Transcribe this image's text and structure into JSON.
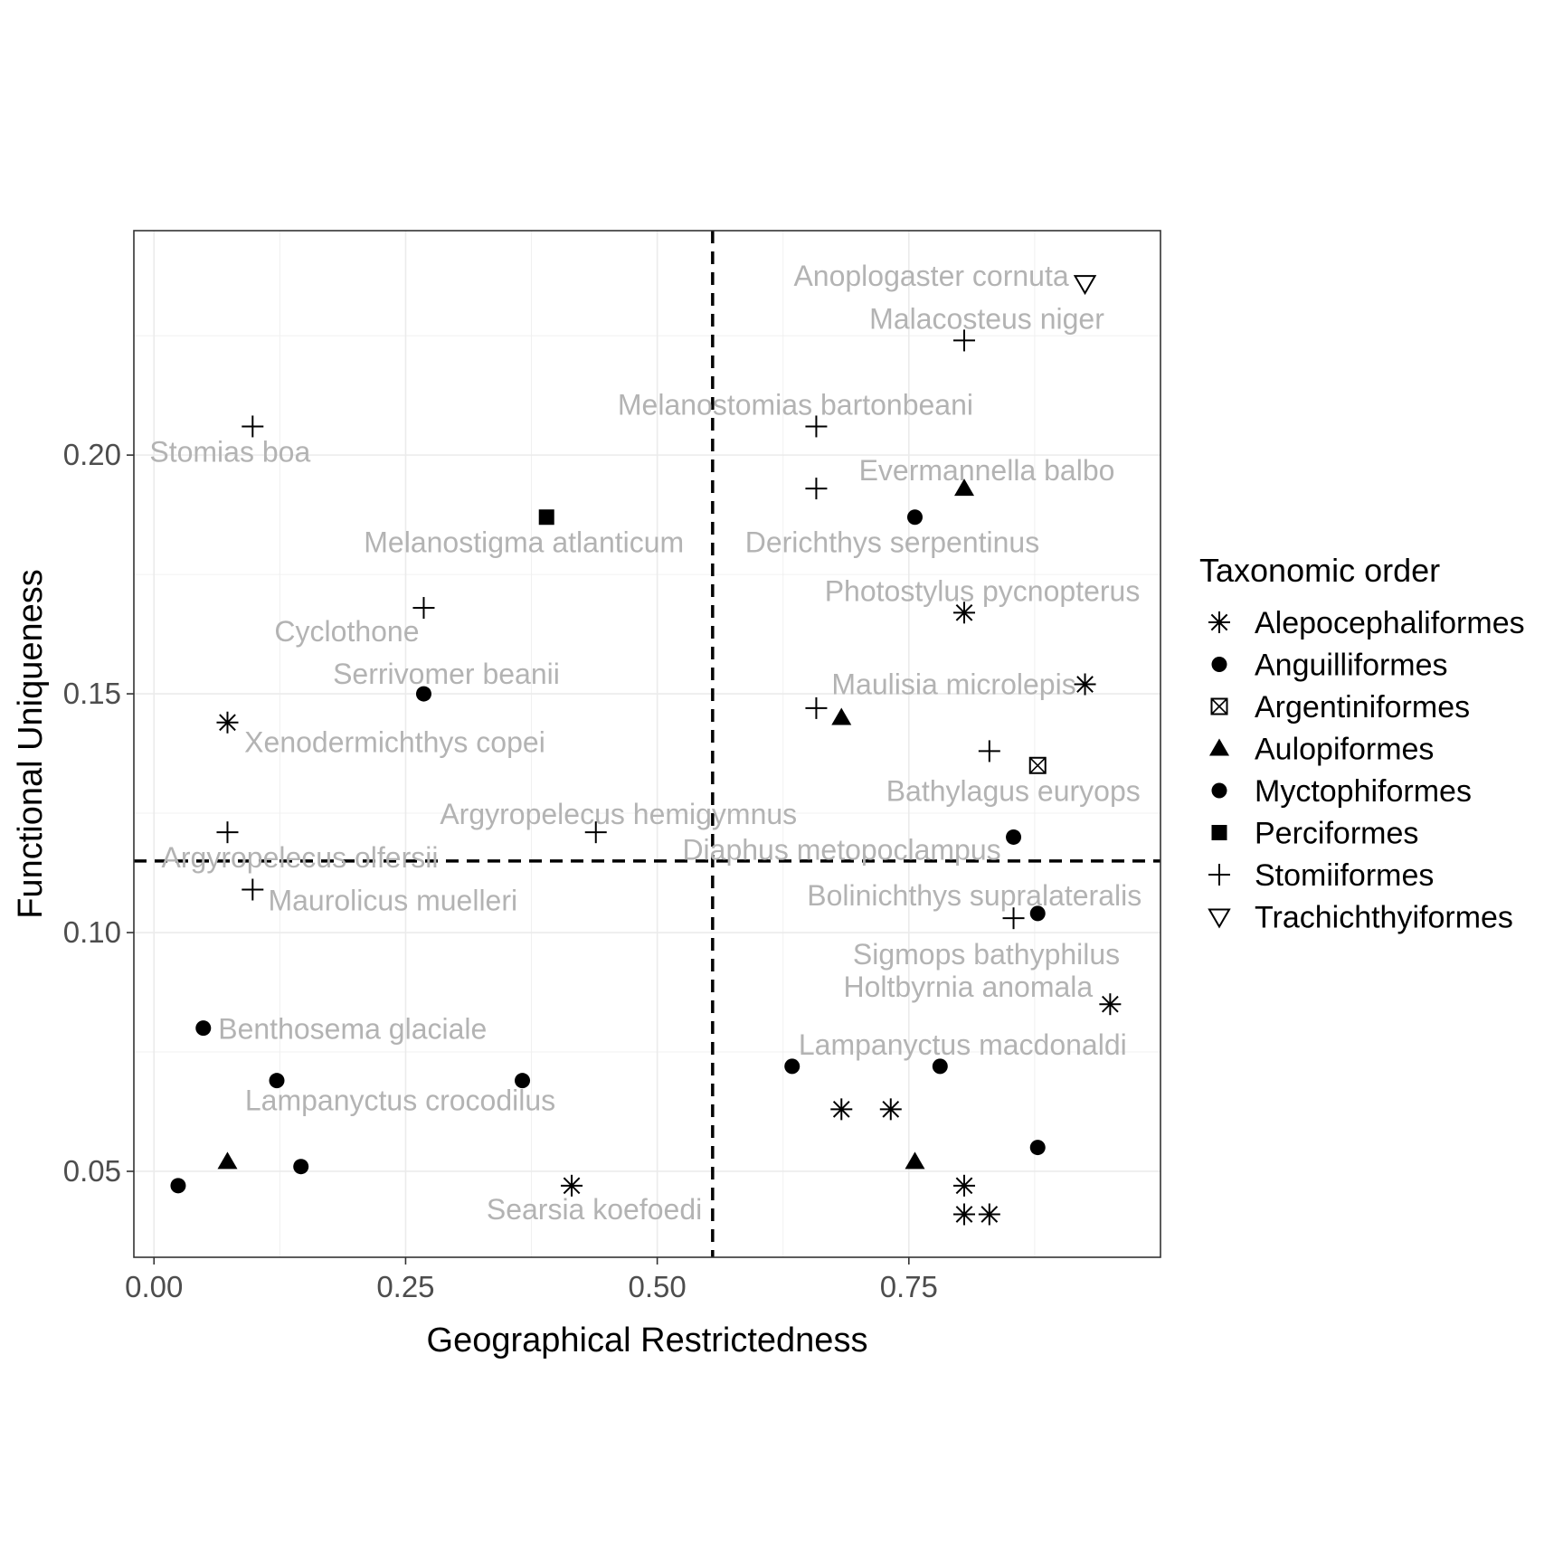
{
  "chart_data": {
    "type": "scatter",
    "title": "",
    "xlabel": "Geographical Restrictedness",
    "ylabel": "Functional Uniqueness",
    "xlim": [
      -0.02,
      1.0
    ],
    "ylim": [
      0.032,
      0.247
    ],
    "xticks": [
      "0.00",
      "0.25",
      "0.50",
      "0.75"
    ],
    "xtick_values": [
      0.0,
      0.25,
      0.5,
      0.75
    ],
    "yticks": [
      "0.05",
      "0.10",
      "0.15",
      "0.20"
    ],
    "ytick_values": [
      0.05,
      0.1,
      0.15,
      0.2
    ],
    "grid": true,
    "threshold_x": 0.555,
    "threshold_y": 0.115,
    "legend": {
      "title": "Taxonomic order",
      "position": "right",
      "entries": [
        {
          "label": "Alepocephaliformes",
          "shape": "asterisk"
        },
        {
          "label": "Anguilliformes",
          "shape": "circle"
        },
        {
          "label": "Argentiniformes",
          "shape": "boxed-x"
        },
        {
          "label": "Aulopiformes",
          "shape": "triangle"
        },
        {
          "label": "Myctophiformes",
          "shape": "circle"
        },
        {
          "label": "Perciformes",
          "shape": "square"
        },
        {
          "label": "Stomiiformes",
          "shape": "plus"
        },
        {
          "label": "Trachichthyiformes",
          "shape": "triangle-down"
        }
      ]
    },
    "points": [
      {
        "x": 0.925,
        "y": 0.236,
        "order": "Trachichthyiformes",
        "label": "Anoplogaster cornuta"
      },
      {
        "x": 0.805,
        "y": 0.224,
        "order": "Stomiiformes",
        "label": "Malacosteus niger"
      },
      {
        "x": 0.658,
        "y": 0.206,
        "order": "Stomiiformes",
        "label": "Melanostomias bartonbeani"
      },
      {
        "x": 0.098,
        "y": 0.206,
        "order": "Stomiiformes",
        "label": "Stomias boa"
      },
      {
        "x": 0.658,
        "y": 0.193,
        "order": "Stomiiformes",
        "label": ""
      },
      {
        "x": 0.805,
        "y": 0.193,
        "order": "Aulopiformes",
        "label": "Evermannella balbo"
      },
      {
        "x": 0.756,
        "y": 0.187,
        "order": "Anguilliformes",
        "label": "Derichthys serpentinus"
      },
      {
        "x": 0.39,
        "y": 0.187,
        "order": "Perciformes",
        "label": "Melanostigma atlanticum"
      },
      {
        "x": 0.805,
        "y": 0.167,
        "order": "Alepocephaliformes",
        "label": "Photostylus pycnopterus"
      },
      {
        "x": 0.268,
        "y": 0.168,
        "order": "Stomiiformes",
        "label": "Cyclothone"
      },
      {
        "x": 0.268,
        "y": 0.15,
        "order": "Anguilliformes",
        "label": "Serrivomer beanii"
      },
      {
        "x": 0.925,
        "y": 0.152,
        "order": "Alepocephaliformes",
        "label": "Maulisia microlepis"
      },
      {
        "x": 0.658,
        "y": 0.147,
        "order": "Stomiiformes",
        "label": ""
      },
      {
        "x": 0.683,
        "y": 0.145,
        "order": "Aulopiformes",
        "label": ""
      },
      {
        "x": 0.073,
        "y": 0.144,
        "order": "Alepocephaliformes",
        "label": "Xenodermichthys copei"
      },
      {
        "x": 0.83,
        "y": 0.138,
        "order": "Stomiiformes",
        "label": ""
      },
      {
        "x": 0.878,
        "y": 0.135,
        "order": "Argentiniformes",
        "label": "Bathylagus euryops"
      },
      {
        "x": 0.439,
        "y": 0.121,
        "order": "Stomiiformes",
        "label": "Argyropelecus hemigymnus"
      },
      {
        "x": 0.073,
        "y": 0.121,
        "order": "Stomiiformes",
        "label": "Argyropelecus olfersii"
      },
      {
        "x": 0.854,
        "y": 0.12,
        "order": "Myctophiformes",
        "label": "Diaphus metopoclampus"
      },
      {
        "x": 0.098,
        "y": 0.109,
        "order": "Stomiiformes",
        "label": "Maurolicus muelleri"
      },
      {
        "x": 0.878,
        "y": 0.104,
        "order": "Myctophiformes",
        "label": "Bolinichthys supralateralis"
      },
      {
        "x": 0.854,
        "y": 0.103,
        "order": "Stomiiformes",
        "label": "Sigmops bathyphilus"
      },
      {
        "x": 0.95,
        "y": 0.085,
        "order": "Alepocephaliformes",
        "label": "Holtbyrnia anomala"
      },
      {
        "x": 0.049,
        "y": 0.08,
        "order": "Myctophiformes",
        "label": "Benthosema glaciale"
      },
      {
        "x": 0.634,
        "y": 0.072,
        "order": "Myctophiformes",
        "label": ""
      },
      {
        "x": 0.781,
        "y": 0.072,
        "order": "Myctophiformes",
        "label": "Lampanyctus macdonaldi"
      },
      {
        "x": 0.122,
        "y": 0.069,
        "order": "Myctophiformes",
        "label": ""
      },
      {
        "x": 0.366,
        "y": 0.069,
        "order": "Myctophiformes",
        "label": "Lampanyctus crocodilus"
      },
      {
        "x": 0.683,
        "y": 0.063,
        "order": "Alepocephaliformes",
        "label": ""
      },
      {
        "x": 0.732,
        "y": 0.063,
        "order": "Alepocephaliformes",
        "label": ""
      },
      {
        "x": 0.878,
        "y": 0.055,
        "order": "Myctophiformes",
        "label": ""
      },
      {
        "x": 0.073,
        "y": 0.052,
        "order": "Aulopiformes",
        "label": ""
      },
      {
        "x": 0.756,
        "y": 0.052,
        "order": "Aulopiformes",
        "label": ""
      },
      {
        "x": 0.146,
        "y": 0.051,
        "order": "Myctophiformes",
        "label": ""
      },
      {
        "x": 0.024,
        "y": 0.047,
        "order": "Myctophiformes",
        "label": ""
      },
      {
        "x": 0.415,
        "y": 0.047,
        "order": "Alepocephaliformes",
        "label": "Searsia koefoedi"
      },
      {
        "x": 0.805,
        "y": 0.047,
        "order": "Alepocephaliformes",
        "label": ""
      },
      {
        "x": 0.805,
        "y": 0.041,
        "order": "Alepocephaliformes",
        "label": ""
      },
      {
        "x": 0.83,
        "y": 0.041,
        "order": "Alepocephaliformes",
        "label": ""
      }
    ]
  }
}
